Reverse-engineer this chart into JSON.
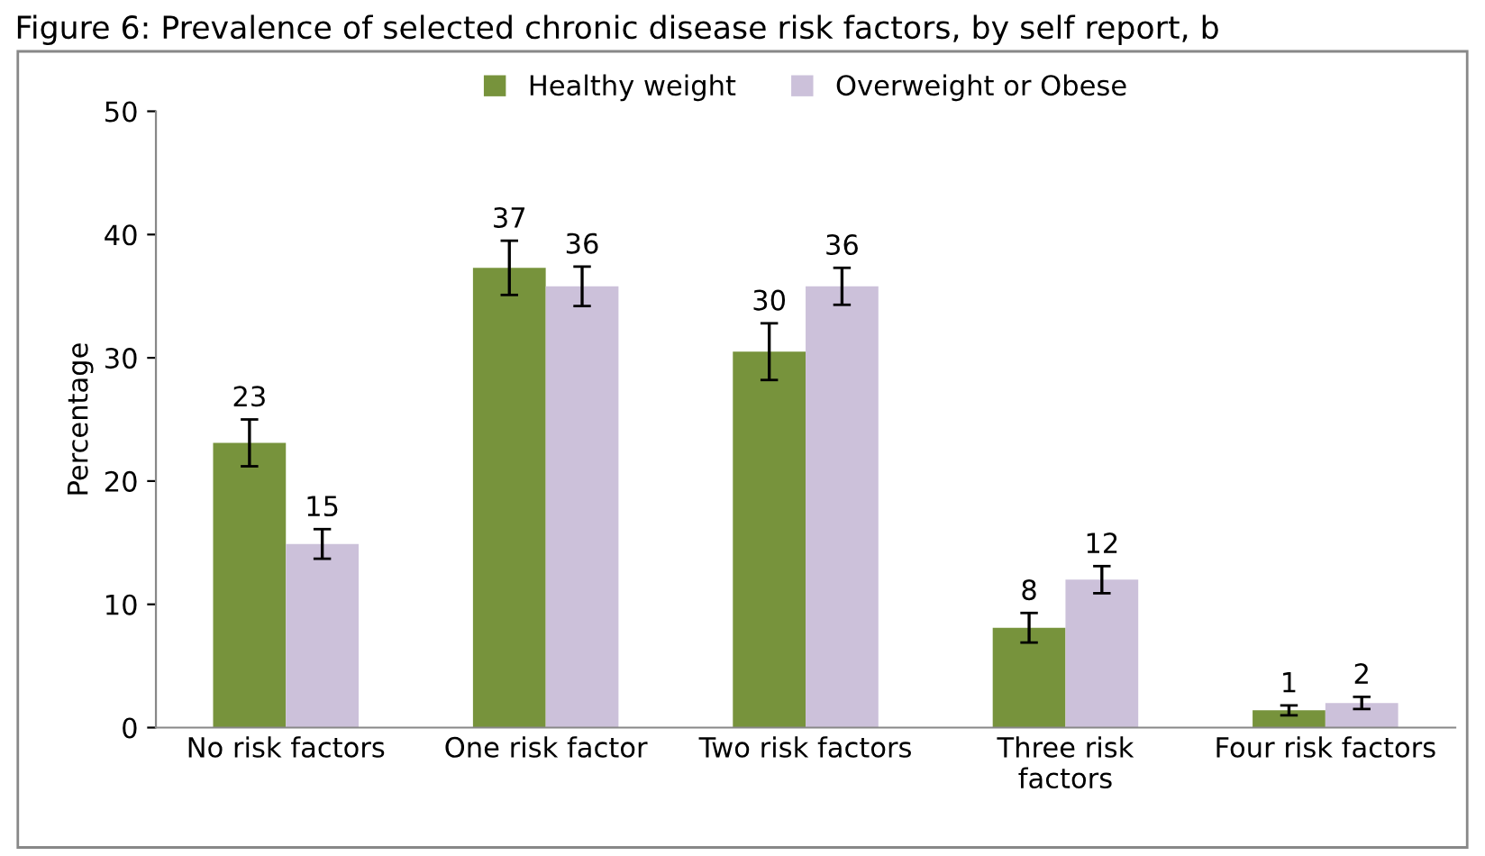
{
  "chart_data": {
    "type": "bar",
    "title": "Figure 6: Prevalence of selected chronic disease risk factors, by self report, b",
    "ylabel": "Percentage",
    "categories": [
      "No risk factors",
      "One risk factor",
      "Two risk factors",
      "Three risk\nfactors",
      "Four risk factors"
    ],
    "series": [
      {
        "name": "Healthy weight",
        "color": "#77933c",
        "values": [
          23.1,
          37.3,
          30.5,
          8.1,
          1.4
        ],
        "errors": [
          1.9,
          2.2,
          2.3,
          1.2,
          0.4
        ],
        "value_labels": [
          "23",
          "37",
          "30",
          "8",
          "1"
        ]
      },
      {
        "name": "Overweight or Obese",
        "color": "#ccc1da",
        "values": [
          14.9,
          35.8,
          35.8,
          12.0,
          2.0
        ],
        "errors": [
          1.2,
          1.6,
          1.5,
          1.1,
          0.5
        ],
        "value_labels": [
          "15",
          "36",
          "36",
          "12",
          "2"
        ]
      }
    ],
    "ylim": [
      0,
      50
    ],
    "yticks": [
      0,
      10,
      20,
      30,
      40,
      50
    ],
    "grid": false,
    "legend": "top"
  }
}
